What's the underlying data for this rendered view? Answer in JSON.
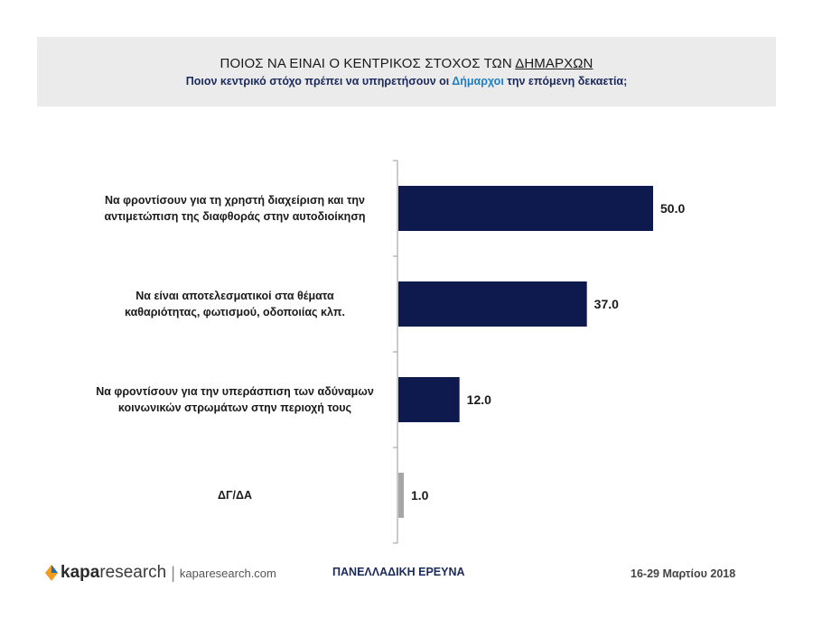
{
  "header": {
    "title_prefix": "ΠΟΙΟΣ ΝΑ ΕΙΝΑΙ Ο ΚΕΝΤΡΙΚΟΣ ΣΤΟΧΟΣ ΤΩΝ ",
    "title_underlined": "ΔΗΜΑΡΧΩΝ",
    "subtitle_prefix": "Ποιον κεντρικό στόχο πρέπει να υπηρετήσουν οι ",
    "subtitle_highlight": "Δήμαρχοι",
    "subtitle_suffix": " την επόμενη δεκαετία;"
  },
  "chart_data": {
    "type": "bar",
    "orientation": "horizontal",
    "categories": [
      [
        "Να φροντίσουν για τη χρηστή διαχείριση και την",
        "αντιμετώπιση της διαφθοράς στην αυτοδιοίκηση"
      ],
      [
        "Να είναι αποτελεσματικοί στα θέματα",
        "καθαριότητας, φωτισμού, οδοποιίας κλπ."
      ],
      [
        "Να φροντίσουν για την υπεράσπιση των αδύναμων",
        "κοινωνικών στρωμάτων στην περιοχή τους"
      ],
      [
        "ΔΓ/ΔΑ"
      ]
    ],
    "values": [
      50.0,
      37.0,
      12.0,
      1.0
    ],
    "value_labels": [
      "50.0",
      "37.0",
      "12.0",
      "1.0"
    ],
    "bar_colors": [
      "#0e1a4d",
      "#0e1a4d",
      "#0e1a4d",
      "#a6a6a6"
    ],
    "xlim": [
      0,
      50
    ],
    "grid": false,
    "legend": "none"
  },
  "footer": {
    "brand_bold": "kapa",
    "brand_rest": "research",
    "separator": "|",
    "url": "kaparesearch.com",
    "survey": "ΠΑΝΕΛΛΑΔΙΚΗ ΕΡΕΥΝΑ",
    "date": "16-29 Μαρτίου 2018"
  }
}
